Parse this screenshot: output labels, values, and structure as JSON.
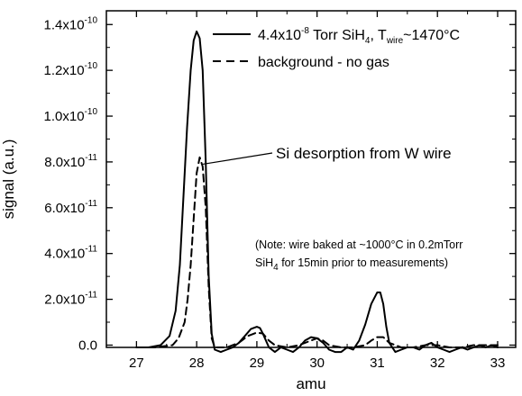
{
  "chart_data": {
    "type": "line",
    "xlabel": "amu",
    "ylabel": "signal (a.u.)",
    "xlim": [
      26.5,
      33.3
    ],
    "ylim": [
      -1e-12,
      1.46e-10
    ],
    "x_ticks": [
      27,
      28,
      29,
      30,
      31,
      32,
      33
    ],
    "x_tick_labels": [
      "27",
      "28",
      "29",
      "30",
      "31",
      "32",
      "33"
    ],
    "y_ticks": [
      0,
      2e-11,
      4e-11,
      6e-11,
      8e-11,
      1e-10,
      1.2e-10,
      1.4e-10
    ],
    "y_tick_labels": [
      "0.0",
      "2.0x10-11",
      "4.0x10-11",
      "6.0x10-11",
      "8.0x10-11",
      "1.0x10-10",
      "1.2x10-10",
      "1.4x10-10"
    ],
    "y_tick_parts": [
      {
        "mant": "0.0",
        "exp": ""
      },
      {
        "mant": "2.0x10",
        "exp": "-11"
      },
      {
        "mant": "4.0x10",
        "exp": "-11"
      },
      {
        "mant": "6.0x10",
        "exp": "-11"
      },
      {
        "mant": "8.0x10",
        "exp": "-11"
      },
      {
        "mant": "1.0x10",
        "exp": "-10"
      },
      {
        "mant": "1.2x10",
        "exp": "-10"
      },
      {
        "mant": "1.4x10",
        "exp": "-10"
      }
    ],
    "legend_position": "top-right",
    "legend": {
      "silane": {
        "text": "4.4x10-8 Torr SiH4, Twire~1470°C",
        "p1": "4.4x10",
        "p1_sup": "-8",
        "p2": " Torr SiH",
        "p2_sub": "4",
        "p3": ", T",
        "p3_sub": "wire",
        "p4": "~1470°C"
      },
      "background": {
        "text": "background - no gas"
      }
    },
    "annotation": {
      "text": "Si desorption from W wire",
      "target_x": 28.1,
      "target_y": 7.9e-11
    },
    "note": {
      "line1": "(Note: wire baked at ~1000°C in 0.2mTorr",
      "line2_a": "SiH",
      "line2_sub": "4",
      "line2_b": " for 15min prior to measurements)"
    },
    "series": [
      {
        "name": "4.4x10-8 Torr SiH4, Twire~1470°C",
        "style": "solid",
        "color": "#000000",
        "x": [
          27.0,
          27.2,
          27.4,
          27.55,
          27.65,
          27.72,
          27.78,
          27.84,
          27.9,
          27.95,
          28.0,
          28.05,
          28.1,
          28.15,
          28.2,
          28.25,
          28.3,
          28.4,
          28.5,
          28.6,
          28.7,
          28.8,
          28.9,
          29.0,
          29.05,
          29.1,
          29.2,
          29.3,
          29.4,
          29.5,
          29.6,
          29.7,
          29.8,
          29.9,
          30.0,
          30.1,
          30.2,
          30.3,
          30.4,
          30.5,
          30.6,
          30.7,
          30.8,
          30.9,
          31.0,
          31.05,
          31.1,
          31.15,
          31.2,
          31.3,
          31.4,
          31.5,
          31.6,
          31.7,
          31.8,
          31.9,
          32.0,
          32.1,
          32.2,
          32.3,
          32.4,
          32.5,
          32.6,
          32.7,
          32.8,
          32.9,
          33.0
        ],
        "values": [
          -1e-12,
          -1e-12,
          0,
          4e-12,
          1.5e-11,
          3.5e-11,
          6.5e-11,
          9.5e-11,
          1.2e-10,
          1.33e-10,
          1.37e-10,
          1.34e-10,
          1.2e-10,
          8e-11,
          3e-11,
          5e-12,
          -2e-12,
          -3e-12,
          -2e-12,
          -1e-12,
          1e-12,
          4e-12,
          7e-12,
          8e-12,
          7.5e-12,
          5e-12,
          -1e-12,
          -3e-12,
          -1e-12,
          -2e-12,
          -3e-12,
          -1e-12,
          2e-12,
          3.5e-12,
          3e-12,
          1e-12,
          -2e-12,
          -3e-12,
          -3e-12,
          -1e-12,
          -2e-12,
          2e-12,
          9e-12,
          1.8e-11,
          2.3e-11,
          2.3e-11,
          1.8e-11,
          8e-12,
          1e-12,
          -3e-12,
          -2e-12,
          -1e-12,
          -1e-12,
          -2e-12,
          0,
          1e-12,
          -1e-12,
          -2e-12,
          -3e-12,
          -2e-12,
          -1e-12,
          -2e-12,
          -1e-12,
          0,
          -1e-12,
          0,
          -1e-12
        ]
      },
      {
        "name": "background - no gas",
        "style": "dashed",
        "color": "#000000",
        "x": [
          27.0,
          27.3,
          27.6,
          27.7,
          27.8,
          27.85,
          27.9,
          27.95,
          28.0,
          28.05,
          28.1,
          28.15,
          28.2,
          28.25,
          28.3,
          28.5,
          28.7,
          28.85,
          29.0,
          29.1,
          29.2,
          29.3,
          29.5,
          29.7,
          29.9,
          30.0,
          30.1,
          30.2,
          30.4,
          30.6,
          30.8,
          30.9,
          31.0,
          31.1,
          31.2,
          31.4,
          31.6,
          31.8,
          32.0,
          32.2,
          32.4,
          32.6,
          32.8,
          33.0
        ],
        "values": [
          -1e-12,
          -1e-12,
          0,
          3e-12,
          1e-11,
          2e-11,
          3.5e-11,
          5.5e-11,
          7.5e-11,
          8.2e-11,
          7.8e-11,
          6e-11,
          2.5e-11,
          3e-12,
          -1e-12,
          -1e-12,
          1e-12,
          4e-12,
          5.5e-12,
          5e-12,
          2e-12,
          0,
          -1e-12,
          0,
          2e-12,
          3e-12,
          2e-12,
          0,
          -1e-12,
          -1e-12,
          0,
          2e-12,
          3.5e-12,
          3.5e-12,
          1e-12,
          -1e-12,
          -1e-12,
          0,
          0,
          -1e-12,
          -1e-12,
          0,
          0,
          0
        ]
      }
    ]
  }
}
